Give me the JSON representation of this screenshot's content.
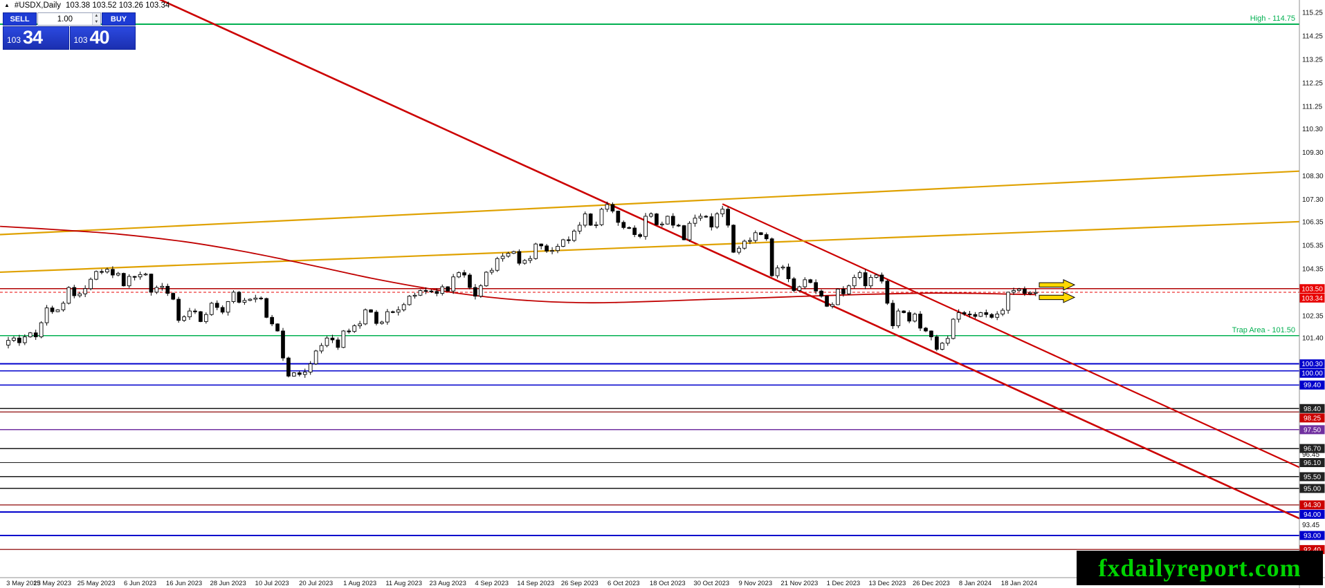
{
  "quote_bar": {
    "marker": "▲",
    "symbol": "#USDX,Daily",
    "ohlc": "103.38 103.52 103.26 103.34"
  },
  "trade_panel": {
    "sell_label": "SELL",
    "buy_label": "BUY",
    "volume": "1.00",
    "sell_price_small": "103",
    "sell_price_big": "34",
    "buy_price_small": "103",
    "buy_price_big": "40"
  },
  "watermark": "fxdailyreport.com",
  "chart_data": {
    "type": "candlestick",
    "title": "#USDX Daily",
    "first_open": 101.1,
    "closes": [
      101.3,
      101.4,
      101.2,
      101.45,
      101.62,
      101.45,
      102.05,
      102.68,
      102.52,
      102.6,
      102.88,
      103.55,
      103.2,
      103.28,
      103.5,
      103.9,
      104.23,
      104.21,
      104.32,
      104.08,
      104.15,
      103.62,
      104.02,
      104.0,
      104.1,
      104.12,
      103.35,
      103.55,
      103.6,
      103.3,
      103.05,
      102.15,
      102.3,
      102.55,
      102.52,
      102.1,
      102.4,
      102.88,
      102.7,
      102.5,
      102.95,
      103.35,
      102.92,
      103.0,
      103.05,
      103.1,
      103.08,
      102.28,
      102.0,
      101.7,
      100.55,
      99.78,
      99.92,
      99.85,
      99.95,
      100.3,
      100.85,
      101.08,
      101.4,
      101.32,
      101.0,
      101.7,
      101.68,
      101.92,
      102.0,
      102.6,
      102.5,
      102.02,
      102.08,
      102.52,
      102.5,
      102.6,
      102.82,
      103.18,
      103.22,
      103.42,
      103.4,
      103.38,
      103.3,
      103.58,
      103.4,
      104.0,
      104.18,
      104.08,
      103.55,
      103.18,
      103.62,
      104.2,
      104.28,
      104.78,
      104.88,
      105.0,
      105.08,
      104.58,
      104.7,
      104.78,
      105.4,
      105.32,
      105.1,
      105.12,
      105.3,
      105.58,
      105.55,
      105.95,
      106.2,
      106.68,
      106.2,
      106.22,
      106.88,
      107.08,
      106.8,
      106.32,
      106.1,
      106.08,
      105.8,
      105.72,
      106.58,
      106.68,
      106.22,
      106.25,
      106.58,
      106.2,
      106.18,
      105.58,
      106.28,
      106.5,
      106.58,
      106.56,
      106.12,
      106.68,
      106.88,
      106.2,
      105.05,
      105.22,
      105.52,
      105.55,
      105.88,
      105.8,
      105.62,
      104.05,
      104.38,
      104.42,
      103.92,
      103.42,
      103.58,
      103.88,
      103.76,
      103.4,
      103.18,
      102.75,
      102.82,
      103.48,
      103.28,
      103.62,
      103.98,
      104.18,
      103.62,
      103.98,
      104.08,
      103.82,
      102.88,
      101.92,
      102.55,
      102.48,
      102.12,
      102.42,
      101.82,
      101.7,
      101.45,
      100.92,
      101.18,
      101.38,
      102.2,
      102.48,
      102.42,
      102.4,
      102.32,
      102.48,
      102.4,
      102.28,
      102.42,
      102.58,
      103.35,
      103.42,
      103.48,
      103.3,
      103.32,
      103.34
    ],
    "x_labels": [
      {
        "label": "3 May 2023",
        "bar": 0
      },
      {
        "label": "15 May 2023",
        "bar": 8
      },
      {
        "label": "25 May 2023",
        "bar": 16
      },
      {
        "label": "6 Jun 2023",
        "bar": 24
      },
      {
        "label": "16 Jun 2023",
        "bar": 32
      },
      {
        "label": "28 Jun 2023",
        "bar": 40
      },
      {
        "label": "10 Jul 2023",
        "bar": 48
      },
      {
        "label": "20 Jul 2023",
        "bar": 56
      },
      {
        "label": "1 Aug 2023",
        "bar": 64
      },
      {
        "label": "11 Aug 2023",
        "bar": 72
      },
      {
        "label": "23 Aug 2023",
        "bar": 80
      },
      {
        "label": "4 Sep 2023",
        "bar": 88
      },
      {
        "label": "14 Sep 2023",
        "bar": 96
      },
      {
        "label": "26 Sep 2023",
        "bar": 104
      },
      {
        "label": "6 Oct 2023",
        "bar": 112
      },
      {
        "label": "18 Oct 2023",
        "bar": 120
      },
      {
        "label": "30 Oct 2023",
        "bar": 128
      },
      {
        "label": "9 Nov 2023",
        "bar": 136
      },
      {
        "label": "21 Nov 2023",
        "bar": 144
      },
      {
        "label": "1 Dec 2023",
        "bar": 152
      },
      {
        "label": "13 Dec 2023",
        "bar": 160
      },
      {
        "label": "26 Dec 2023",
        "bar": 168
      },
      {
        "label": "8 Jan 2024",
        "bar": 176
      },
      {
        "label": "18 Jan 2024",
        "bar": 184
      }
    ],
    "y_ticks": [
      115.25,
      114.25,
      113.25,
      112.25,
      111.25,
      110.3,
      109.3,
      108.3,
      107.3,
      106.35,
      105.35,
      104.35,
      102.35,
      101.4,
      96.45,
      93.45
    ],
    "levels": [
      {
        "price": 114.75,
        "color": "#00b050",
        "width": 1.6
      },
      {
        "price": 103.5,
        "color": "#b00000",
        "width": 1.4,
        "badge": "#e80000"
      },
      {
        "price": 103.34,
        "color": "#e80000",
        "width": 1.0,
        "dash": true,
        "badge": "#e80000"
      },
      {
        "price": 101.5,
        "color": "#00b050",
        "width": 1.6
      },
      {
        "price": 100.3,
        "color": "#0000cc",
        "width": 1.8,
        "badge": "#0000cc"
      },
      {
        "price": 100.0,
        "color": "#0000cc",
        "width": 1.8,
        "badge": "#0000cc"
      },
      {
        "price": 99.4,
        "color": "#0000cc",
        "width": 1.8,
        "badge": "#0000cc"
      },
      {
        "price": 98.4,
        "color": "#1a1a1a",
        "width": 1.4,
        "badge": "#222222"
      },
      {
        "price": 98.25,
        "color": "#a03030",
        "width": 1.4,
        "badge": "#cc0000"
      },
      {
        "price": 97.5,
        "color": "#7030a0",
        "width": 1.6,
        "badge": "#7030a0"
      },
      {
        "price": 96.7,
        "color": "#1a1a1a",
        "width": 1.4,
        "badge": "#222222"
      },
      {
        "price": 96.1,
        "color": "#1a1a1a",
        "width": 1.4,
        "badge": "#222222"
      },
      {
        "price": 95.5,
        "color": "#1a1a1a",
        "width": 1.4,
        "badge": "#222222"
      },
      {
        "price": 95.0,
        "color": "#1a1a1a",
        "width": 1.4,
        "badge": "#222222"
      },
      {
        "price": 94.3,
        "color": "#a03030",
        "width": 1.4,
        "badge": "#cc0000"
      },
      {
        "price": 94.0,
        "color": "#0000cc",
        "width": 1.8,
        "badge": "#0000cc"
      },
      {
        "price": 93.0,
        "color": "#0000cc",
        "width": 1.8,
        "badge": "#0000cc"
      },
      {
        "price": 92.4,
        "color": "#a03030",
        "width": 1.4,
        "badge": "#cc0000"
      }
    ],
    "trendlines": [
      {
        "name": "long-term-downtrend",
        "color": "#cc0000",
        "width": 2.6,
        "price_at_left": 118.9,
        "price_at_right": 93.72
      },
      {
        "name": "downtrend-channel-upper",
        "color": "#cc0000",
        "width": 2.2,
        "start_bar": 130,
        "start_price": 107.1,
        "price_at_right": 95.9
      },
      {
        "name": "rising-resistance-upper",
        "color": "#dfa100",
        "width": 2.2,
        "price_at_left": 105.8,
        "price_at_right": 108.5
      },
      {
        "name": "rising-resistance-lower",
        "color": "#dfa100",
        "width": 2.2,
        "price_at_left": 104.2,
        "price_at_right": 106.35
      }
    ],
    "ma_line": {
      "color": "#c00000",
      "points": [
        [
          -1.5,
          106.15
        ],
        [
          8,
          106.02
        ],
        [
          20,
          105.82
        ],
        [
          32,
          105.5
        ],
        [
          42,
          105.12
        ],
        [
          50,
          104.75
        ],
        [
          58,
          104.35
        ],
        [
          66,
          103.95
        ],
        [
          74,
          103.6
        ],
        [
          82,
          103.3
        ],
        [
          90,
          103.08
        ],
        [
          98,
          102.95
        ],
        [
          106,
          102.9
        ],
        [
          112,
          102.92
        ],
        [
          120,
          102.98
        ],
        [
          128,
          103.05
        ],
        [
          136,
          103.1
        ],
        [
          144,
          103.17
        ],
        [
          152,
          103.23
        ],
        [
          160,
          103.28
        ],
        [
          168,
          103.31
        ],
        [
          176,
          103.3
        ],
        [
          182,
          103.27
        ],
        [
          187,
          103.25
        ]
      ]
    },
    "arrows": [
      {
        "price": 103.66,
        "color": "#ffd800"
      },
      {
        "price": 103.13,
        "color": "#ffd800"
      }
    ],
    "annotations": [
      {
        "text": "High - 114.75",
        "price": 114.75,
        "color": "#00b050"
      },
      {
        "text": "Trap Area - 101.50",
        "price": 101.5,
        "color": "#00b050"
      }
    ]
  }
}
